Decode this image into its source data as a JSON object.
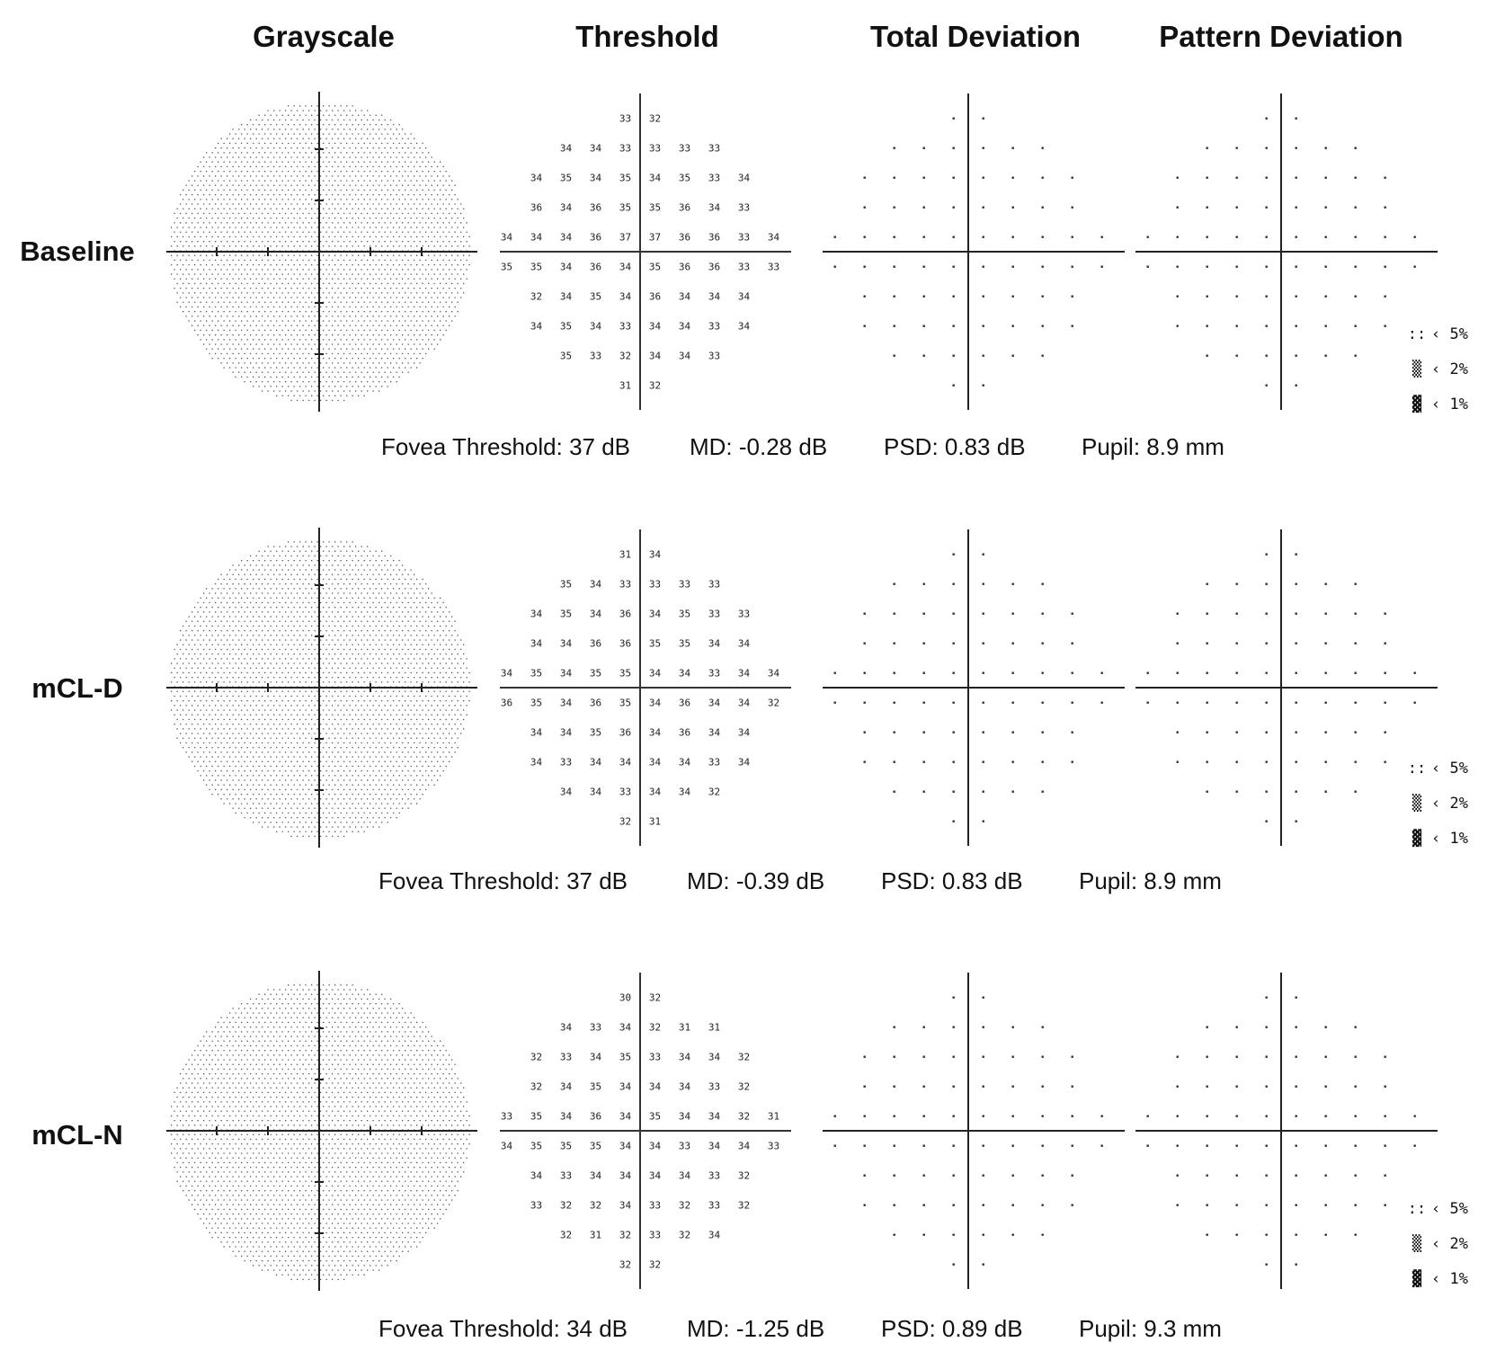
{
  "columns": [
    "Grayscale",
    "Threshold",
    "Total Deviation",
    "Pattern Deviation"
  ],
  "legend": [
    {
      "symbol": "::",
      "label": "‹ 5%"
    },
    {
      "symbol": "▒",
      "label": "‹ 2%"
    },
    {
      "symbol": "▓",
      "label": "‹ 1%"
    }
  ],
  "rows": [
    {
      "label": "Baseline",
      "threshold": {
        "rows": [
          [
            "33",
            "32"
          ],
          [
            "34",
            "34",
            "33",
            "33",
            "33",
            "33"
          ],
          [
            "34",
            "35",
            "34",
            "35",
            "34",
            "35",
            "33",
            "34"
          ],
          [
            "36",
            "34",
            "36",
            "35",
            "35",
            "36",
            "34",
            "33"
          ],
          [
            "34",
            "34",
            "34",
            "36",
            "37",
            "37",
            "36",
            "36",
            "33",
            "34"
          ],
          [
            "35",
            "35",
            "34",
            "36",
            "34",
            "35",
            "36",
            "36",
            "33",
            "33"
          ],
          [
            "32",
            "34",
            "35",
            "34",
            "36",
            "34",
            "34",
            "34"
          ],
          [
            "34",
            "35",
            "34",
            "33",
            "34",
            "34",
            "33",
            "34"
          ],
          [
            "35",
            "33",
            "32",
            "34",
            "34",
            "33"
          ],
          [
            "31",
            "32"
          ]
        ]
      },
      "stats": {
        "fovea": "Fovea Threshold: 37 dB",
        "md": "MD: -0.28 dB",
        "psd": "PSD: 0.83 dB",
        "pupil": "Pupil: 8.9 mm"
      }
    },
    {
      "label": "mCL-D",
      "threshold": {
        "rows": [
          [
            "31",
            "34"
          ],
          [
            "35",
            "34",
            "33",
            "33",
            "33",
            "33"
          ],
          [
            "34",
            "35",
            "34",
            "36",
            "34",
            "35",
            "33",
            "33"
          ],
          [
            "34",
            "34",
            "36",
            "36",
            "35",
            "35",
            "34",
            "34"
          ],
          [
            "34",
            "35",
            "34",
            "35",
            "35",
            "34",
            "34",
            "33",
            "34",
            "34"
          ],
          [
            "36",
            "35",
            "34",
            "36",
            "35",
            "34",
            "36",
            "34",
            "34",
            "32"
          ],
          [
            "34",
            "34",
            "35",
            "36",
            "34",
            "36",
            "34",
            "34"
          ],
          [
            "34",
            "33",
            "34",
            "34",
            "34",
            "34",
            "33",
            "34"
          ],
          [
            "34",
            "34",
            "33",
            "34",
            "34",
            "32"
          ],
          [
            "32",
            "31"
          ]
        ]
      },
      "stats": {
        "fovea": "Fovea Threshold: 37 dB",
        "md": "MD: -0.39 dB",
        "psd": "PSD: 0.83 dB",
        "pupil": "Pupil: 8.9 mm"
      }
    },
    {
      "label": "mCL-N",
      "threshold": {
        "rows": [
          [
            "30",
            "32"
          ],
          [
            "34",
            "33",
            "34",
            "32",
            "31",
            "31"
          ],
          [
            "32",
            "33",
            "34",
            "35",
            "33",
            "34",
            "34",
            "32"
          ],
          [
            "32",
            "34",
            "35",
            "34",
            "34",
            "34",
            "33",
            "32"
          ],
          [
            "33",
            "35",
            "34",
            "36",
            "34",
            "35",
            "34",
            "34",
            "32",
            "31"
          ],
          [
            "34",
            "35",
            "35",
            "35",
            "34",
            "34",
            "33",
            "34",
            "34",
            "33"
          ],
          [
            "34",
            "33",
            "34",
            "34",
            "34",
            "34",
            "33",
            "32"
          ],
          [
            "33",
            "32",
            "32",
            "34",
            "33",
            "32",
            "33",
            "32"
          ],
          [
            "32",
            "31",
            "32",
            "33",
            "32",
            "34"
          ],
          [
            "32",
            "32"
          ]
        ]
      },
      "stats": {
        "fovea": "Fovea Threshold: 34 dB",
        "md": "MD: -1.25 dB",
        "psd": "PSD: 0.89 dB",
        "pupil": "Pupil: 9.3 mm"
      }
    }
  ]
}
